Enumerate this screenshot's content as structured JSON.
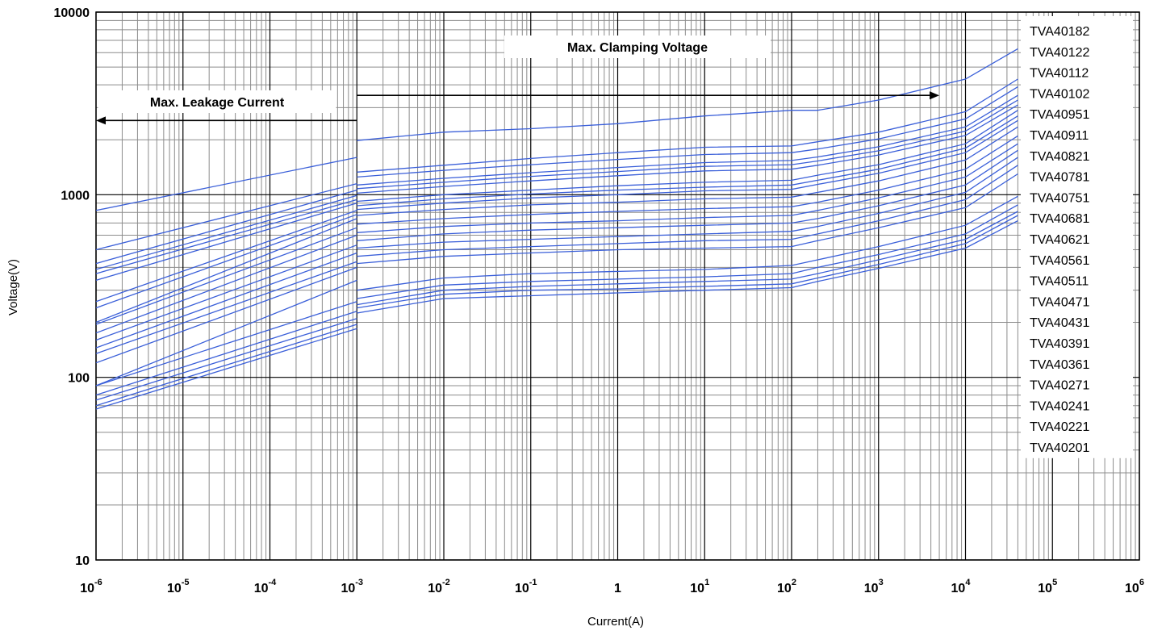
{
  "chart_data": {
    "type": "line",
    "xlabel": "Current(A)",
    "ylabel": "Voltage(V)",
    "x_scale": "log",
    "y_scale": "log",
    "xlim": [
      1e-06,
      1000000.0
    ],
    "ylim": [
      10,
      10000
    ],
    "x_tick_values": [
      1e-06,
      1e-05,
      0.0001,
      0.001,
      0.01,
      0.1,
      1,
      10,
      100,
      1000,
      10000,
      100000,
      1000000
    ],
    "x_tick_labels": [
      {
        "base": "10",
        "exp": "-6"
      },
      {
        "base": "10",
        "exp": "-5"
      },
      {
        "base": "10",
        "exp": "-4"
      },
      {
        "base": "10",
        "exp": "-3"
      },
      {
        "base": "10",
        "exp": "-2"
      },
      {
        "base": "10",
        "exp": "-1"
      },
      {
        "base": "1",
        "exp": ""
      },
      {
        "base": "10",
        "exp": "1"
      },
      {
        "base": "10",
        "exp": "2"
      },
      {
        "base": "10",
        "exp": "3"
      },
      {
        "base": "10",
        "exp": "4"
      },
      {
        "base": "10",
        "exp": "5"
      },
      {
        "base": "10",
        "exp": "6"
      }
    ],
    "y_tick_values": [
      10,
      100,
      1000,
      10000
    ],
    "y_tick_labels": [
      "10",
      "100",
      "1000",
      "10000"
    ],
    "grid": "on (major and minor)",
    "legend_position": "right",
    "line_color": "#3a5fd9",
    "annotations": [
      {
        "id": "clamp",
        "text": "Max. Clamping Voltage",
        "arrow": "right",
        "x_from": 0.001,
        "x_to": 5000,
        "y": 3500
      },
      {
        "id": "leak",
        "text": "Max. Leakage Current",
        "arrow": "left",
        "x_from": 0.001,
        "x_to": 1e-06,
        "y": 2550
      }
    ],
    "series": [
      {
        "name": "TVA40182",
        "leak_x": [
          1e-06,
          0.001
        ],
        "leak_y": [
          820,
          1600
        ],
        "clamp_x": [
          0.001,
          0.01,
          0.1,
          1,
          10,
          100,
          200,
          1000,
          10000,
          40000
        ],
        "clamp_y": [
          1980,
          2200,
          2300,
          2450,
          2700,
          2900,
          2900,
          3300,
          4300,
          6300
        ]
      },
      {
        "name": "TVA40122",
        "leak_x": [
          1e-06,
          0.001
        ],
        "leak_y": [
          500,
          1150
        ],
        "clamp_x": [
          0.001,
          0.01,
          0.1,
          1,
          10,
          100,
          200,
          1000,
          10000,
          40000
        ],
        "clamp_y": [
          1330,
          1450,
          1580,
          1700,
          1820,
          1850,
          1950,
          2200,
          2850,
          4300
        ]
      },
      {
        "name": "TVA40112",
        "leak_x": [
          1e-06,
          0.001
        ],
        "leak_y": [
          420,
          1060
        ],
        "clamp_x": [
          0.001,
          0.01,
          0.1,
          1,
          10,
          100,
          200,
          1000,
          10000,
          40000
        ],
        "clamp_y": [
          1250,
          1360,
          1460,
          1560,
          1660,
          1700,
          1780,
          2020,
          2600,
          3900
        ]
      },
      {
        "name": "TVA40102",
        "leak_x": [
          1e-06,
          0.001
        ],
        "leak_y": [
          390,
          990
        ],
        "clamp_x": [
          0.001,
          0.01,
          0.1,
          1,
          10,
          100,
          200,
          1000,
          10000,
          40000
        ],
        "clamp_y": [
          1130,
          1230,
          1320,
          1410,
          1500,
          1540,
          1610,
          1830,
          2350,
          3500
        ]
      },
      {
        "name": "TVA40951",
        "leak_x": [
          1e-06,
          0.001
        ],
        "leak_y": [
          370,
          940
        ],
        "clamp_x": [
          0.001,
          0.01,
          0.1,
          1,
          10,
          100,
          200,
          1000,
          10000,
          40000
        ],
        "clamp_y": [
          1080,
          1170,
          1260,
          1340,
          1430,
          1460,
          1530,
          1740,
          2230,
          3300
        ]
      },
      {
        "name": "TVA40911",
        "leak_x": [
          1e-06,
          0.001
        ],
        "leak_y": [
          340,
          900
        ],
        "clamp_x": [
          0.001,
          0.01,
          0.1,
          1,
          10,
          100,
          200,
          1000,
          10000,
          40000
        ],
        "clamp_y": [
          1020,
          1110,
          1190,
          1270,
          1350,
          1380,
          1450,
          1650,
          2110,
          3100
        ]
      },
      {
        "name": "TVA40821",
        "leak_x": [
          1e-06,
          0.001
        ],
        "leak_y": [
          260,
          820
        ],
        "clamp_x": [
          0.001,
          0.01,
          0.1,
          1,
          10,
          100,
          200,
          1000,
          10000,
          40000
        ],
        "clamp_y": [
          920,
          1000,
          1060,
          1120,
          1170,
          1200,
          1280,
          1460,
          1900,
          2900
        ]
      },
      {
        "name": "TVA40781",
        "leak_x": [
          1e-06,
          0.001
        ],
        "leak_y": [
          240,
          780
        ],
        "clamp_x": [
          0.001,
          0.01,
          0.1,
          1,
          10,
          100,
          200,
          1000,
          10000,
          40000
        ],
        "clamp_y": [
          870,
          950,
          1010,
          1060,
          1100,
          1130,
          1200,
          1380,
          1800,
          2700
        ]
      },
      {
        "name": "TVA40751",
        "leak_x": [
          1e-06,
          0.001
        ],
        "leak_y": [
          200,
          740
        ],
        "clamp_x": [
          0.001,
          0.01,
          0.1,
          1,
          10,
          100,
          200,
          1000,
          10000,
          40000
        ],
        "clamp_y": [
          830,
          900,
          960,
          1000,
          1050,
          1070,
          1140,
          1310,
          1700,
          2550
        ]
      },
      {
        "name": "TVA40681",
        "leak_x": [
          1e-06,
          0.001
        ],
        "leak_y": [
          195,
          660
        ],
        "clamp_x": [
          0.001,
          0.01,
          0.1,
          1,
          10,
          100,
          200,
          1000,
          10000,
          40000
        ],
        "clamp_y": [
          770,
          830,
          880,
          910,
          950,
          970,
          1030,
          1190,
          1550,
          2350
        ]
      },
      {
        "name": "TVA40621",
        "leak_x": [
          1e-06,
          0.001
        ],
        "leak_y": [
          175,
          600
        ],
        "clamp_x": [
          0.001,
          0.01,
          0.1,
          1,
          10,
          100,
          200,
          1000,
          10000,
          40000
        ],
        "clamp_y": [
          690,
          740,
          780,
          810,
          840,
          860,
          910,
          1060,
          1380,
          2100
        ]
      },
      {
        "name": "TVA40561",
        "leak_x": [
          1e-06,
          0.001
        ],
        "leak_y": [
          160,
          530
        ],
        "clamp_x": [
          0.001,
          0.01,
          0.1,
          1,
          10,
          100,
          200,
          1000,
          10000,
          40000
        ],
        "clamp_y": [
          620,
          670,
          700,
          720,
          750,
          770,
          820,
          960,
          1250,
          1900
        ]
      },
      {
        "name": "TVA40511",
        "leak_x": [
          1e-06,
          0.001
        ],
        "leak_y": [
          145,
          480
        ],
        "clamp_x": [
          0.001,
          0.01,
          0.1,
          1,
          10,
          100,
          200,
          1000,
          10000,
          40000
        ],
        "clamp_y": [
          560,
          610,
          640,
          660,
          680,
          700,
          740,
          870,
          1130,
          1750
        ]
      },
      {
        "name": "TVA40471",
        "leak_x": [
          1e-06,
          0.001
        ],
        "leak_y": [
          135,
          430
        ],
        "clamp_x": [
          0.001,
          0.01,
          0.1,
          1,
          10,
          100,
          200,
          1000,
          10000,
          40000
        ],
        "clamp_y": [
          510,
          550,
          570,
          590,
          610,
          630,
          670,
          790,
          1030,
          1600
        ]
      },
      {
        "name": "TVA40431",
        "leak_x": [
          1e-06,
          0.001
        ],
        "leak_y": [
          120,
          400
        ],
        "clamp_x": [
          0.001,
          0.01,
          0.1,
          1,
          10,
          100,
          200,
          1000,
          10000,
          40000
        ],
        "clamp_y": [
          460,
          500,
          520,
          540,
          560,
          570,
          610,
          720,
          940,
          1450
        ]
      },
      {
        "name": "TVA40391",
        "leak_x": [
          1e-06,
          0.001
        ],
        "leak_y": [
          90,
          340
        ],
        "clamp_x": [
          0.001,
          0.01,
          0.1,
          1,
          10,
          100,
          200,
          1000,
          10000,
          40000
        ],
        "clamp_y": [
          420,
          460,
          480,
          500,
          510,
          520,
          560,
          660,
          850,
          1300
        ]
      },
      {
        "name": "TVA40361",
        "leak_x": [
          1e-06,
          0.001
        ],
        "leak_y": [
          90,
          260
        ],
        "clamp_x": [
          0.001,
          0.01,
          0.1,
          1,
          10,
          100,
          200,
          1000,
          10000,
          40000
        ],
        "clamp_y": [
          300,
          350,
          370,
          380,
          390,
          410,
          440,
          520,
          680,
          980
        ]
      },
      {
        "name": "TVA40271",
        "leak_x": [
          1e-06,
          0.001
        ],
        "leak_y": [
          80,
          230
        ],
        "clamp_x": [
          0.001,
          0.01,
          0.1,
          1,
          10,
          100,
          200,
          1000,
          10000,
          40000
        ],
        "clamp_y": [
          270,
          320,
          335,
          345,
          355,
          370,
          400,
          470,
          610,
          880
        ]
      },
      {
        "name": "TVA40241",
        "leak_x": [
          1e-06,
          0.001
        ],
        "leak_y": [
          75,
          210
        ],
        "clamp_x": [
          0.001,
          0.01,
          0.1,
          1,
          10,
          100,
          200,
          1000,
          10000,
          40000
        ],
        "clamp_y": [
          250,
          300,
          315,
          325,
          335,
          345,
          370,
          440,
          570,
          810
        ]
      },
      {
        "name": "TVA40221",
        "leak_x": [
          1e-06,
          0.001
        ],
        "leak_y": [
          70,
          195
        ],
        "clamp_x": [
          0.001,
          0.01,
          0.1,
          1,
          10,
          100,
          200,
          1000,
          10000,
          40000
        ],
        "clamp_y": [
          240,
          285,
          300,
          305,
          315,
          325,
          350,
          415,
          540,
          770
        ]
      },
      {
        "name": "TVA40201",
        "leak_x": [
          1e-06,
          0.001
        ],
        "leak_y": [
          67,
          185
        ],
        "clamp_x": [
          0.001,
          0.01,
          0.1,
          1,
          10,
          100,
          200,
          1000,
          10000,
          40000
        ],
        "clamp_y": [
          225,
          270,
          280,
          290,
          300,
          310,
          335,
          395,
          510,
          720
        ]
      }
    ]
  }
}
